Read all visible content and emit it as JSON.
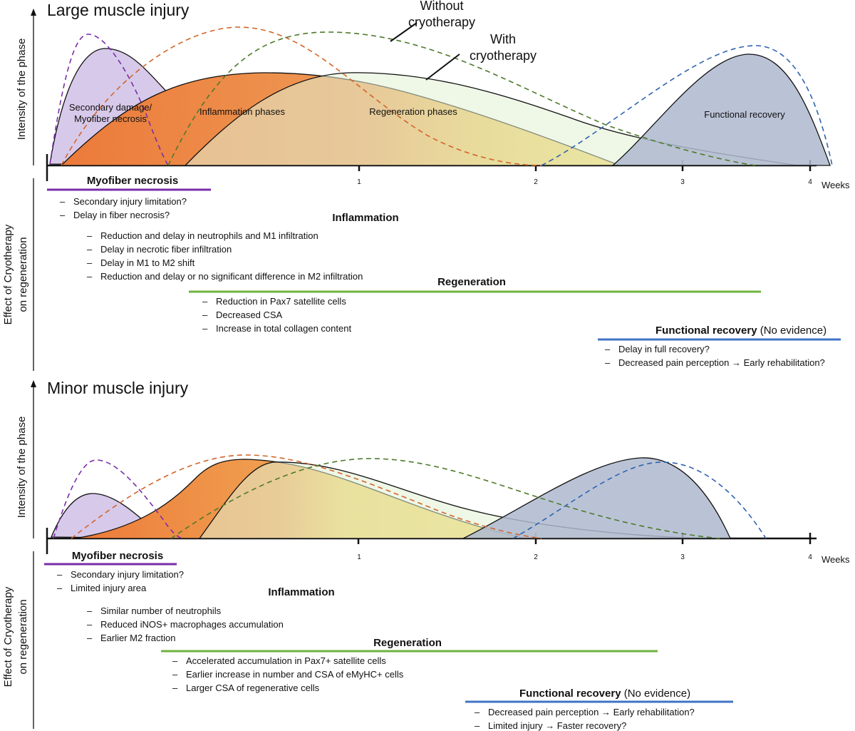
{
  "annotations": {
    "without": [
      "Without",
      "cryotherapy"
    ],
    "with": [
      "With",
      "cryotherapy"
    ]
  },
  "vertical_labels": {
    "intensity": "Intensity of the phase",
    "effect": [
      "Effect of  Cryotherapy",
      "on regeneration"
    ]
  },
  "weeks_label": "Weeks",
  "ticks": [
    "1",
    "2",
    "3",
    "4"
  ],
  "colors": {
    "necrosis": "#7a2ea8",
    "inflammation_start": "#ec7a36",
    "inflammation_end": "#f4b92b",
    "regeneration": "#6db33f",
    "recovery": "#3f73c6"
  },
  "panels": [
    {
      "id": "large",
      "title": "Large muscle injury",
      "phase_labels": {
        "necrosis": [
          "Secondary damage/",
          "Myofiber necrosis"
        ],
        "inflammation": "Inflammation phases",
        "regeneration": "Regeneration phases",
        "recovery": "Functional recovery"
      },
      "sections": [
        {
          "key": "necrosis",
          "title": "Myofiber necrosis",
          "note": "",
          "items": [
            "Secondary injury limitation?",
            "Delay in fiber necrosis?"
          ]
        },
        {
          "key": "inflammation",
          "title": "Inflammation",
          "note": "",
          "items": [
            "Reduction and delay in neutrophils and M1 infiltration",
            "Delay in necrotic fiber infiltration",
            "Delay in M1 to M2 shift",
            "Reduction and delay or no significant difference in M2 infiltration"
          ]
        },
        {
          "key": "regeneration",
          "title": "Regeneration",
          "note": "",
          "items": [
            "Reduction in Pax7 satellite cells",
            "Decreased CSA",
            "Increase in total collagen content"
          ]
        },
        {
          "key": "recovery",
          "title": "Functional recovery",
          "note": " (No evidence)",
          "items": [
            "Delay in full recovery?",
            "Decreased pain perception → Early rehabilitation?"
          ]
        }
      ]
    },
    {
      "id": "minor",
      "title": "Minor muscle injury",
      "sections": [
        {
          "key": "necrosis",
          "title": "Myofiber necrosis",
          "note": "",
          "items": [
            "Secondary injury limitation?",
            "Limited injury area"
          ]
        },
        {
          "key": "inflammation",
          "title": "Inflammation",
          "note": "",
          "items": [
            "Similar number of neutrophils",
            "Reduced iNOS+ macrophages accumulation",
            "Earlier M2 fraction"
          ]
        },
        {
          "key": "regeneration",
          "title": "Regeneration",
          "note": "",
          "items": [
            "Accelerated accumulation in Pax7+ satellite cells",
            "Earlier increase in number and CSA of eMyHC+ cells",
            "Larger CSA of regenerative cells"
          ]
        },
        {
          "key": "recovery",
          "title": "Functional recovery",
          "note": " (No evidence)",
          "items": [
            "Decreased pain perception → Early rehabilitation?",
            "Limited injury → Faster recovery?"
          ]
        }
      ]
    }
  ]
}
